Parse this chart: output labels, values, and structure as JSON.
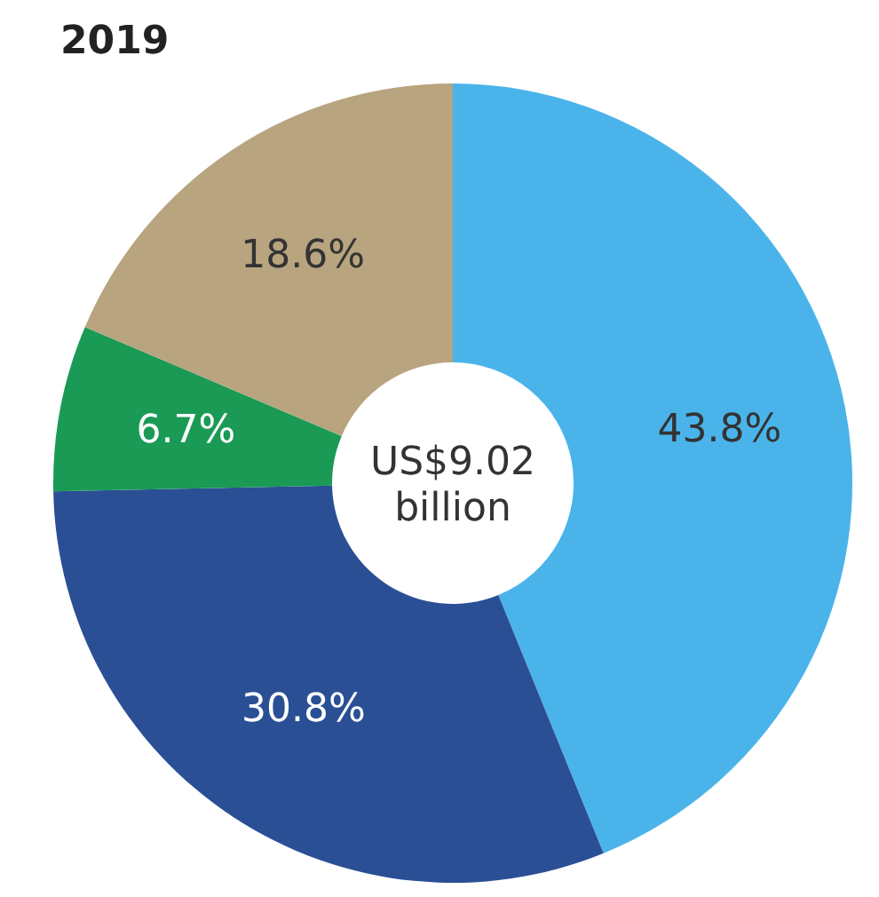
{
  "chart_data": {
    "type": "donut",
    "title": "2019",
    "categories": [
      null,
      null,
      null,
      null
    ],
    "values": [
      43.8,
      30.8,
      6.7,
      18.6
    ],
    "colors": [
      "#4ab4ea",
      "#2a4f95",
      "#1a9a55",
      "#b8a47e"
    ],
    "value_labels": [
      "43.8%",
      "30.8%",
      "6.7%",
      "18.6%"
    ],
    "annotations": [
      "US$9.02 billion"
    ]
  }
}
